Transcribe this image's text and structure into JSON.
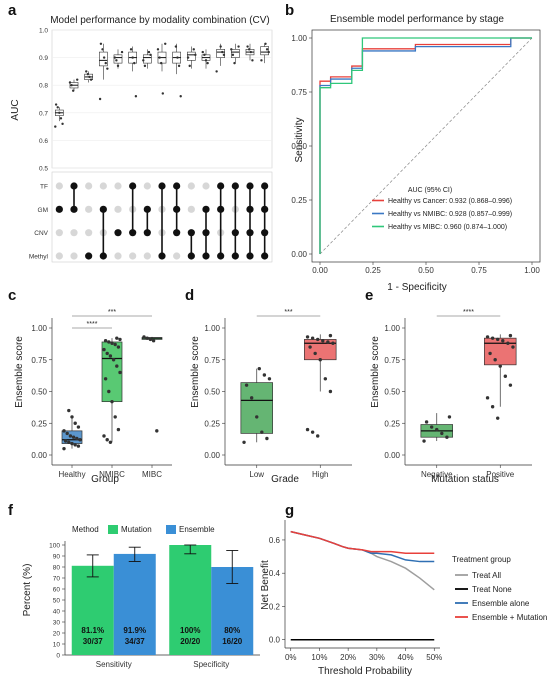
{
  "chart_data": [
    {
      "panel": "a",
      "type": "box",
      "title": "Model performance by modality combination (CV)",
      "ylabel": "AUC",
      "yticks": [
        "0.5",
        "0.6",
        "0.7",
        "0.8",
        "0.9",
        "1.0"
      ],
      "ylim": [
        0.5,
        1.0
      ],
      "boxes": [
        {
          "q1": 0.69,
          "med": 0.7,
          "q3": 0.71,
          "lo": 0.67,
          "hi": 0.72,
          "pts": [
            0.65,
            0.66,
            0.68,
            0.7,
            0.72,
            0.73
          ]
        },
        {
          "q1": 0.79,
          "med": 0.8,
          "q3": 0.81,
          "lo": 0.78,
          "hi": 0.82,
          "pts": [
            0.78,
            0.8,
            0.81,
            0.82
          ]
        },
        {
          "q1": 0.82,
          "med": 0.83,
          "q3": 0.84,
          "lo": 0.81,
          "hi": 0.85,
          "pts": [
            0.82,
            0.83,
            0.84,
            0.85
          ]
        },
        {
          "q1": 0.87,
          "med": 0.89,
          "q3": 0.92,
          "lo": 0.82,
          "hi": 0.95,
          "pts": [
            0.75,
            0.86,
            0.88,
            0.9,
            0.93,
            0.95
          ]
        },
        {
          "q1": 0.88,
          "med": 0.9,
          "q3": 0.91,
          "lo": 0.86,
          "hi": 0.93,
          "pts": [
            0.87,
            0.89,
            0.9,
            0.92
          ]
        },
        {
          "q1": 0.88,
          "med": 0.9,
          "q3": 0.92,
          "lo": 0.85,
          "hi": 0.94,
          "pts": [
            0.76,
            0.88,
            0.9,
            0.93
          ]
        },
        {
          "q1": 0.88,
          "med": 0.9,
          "q3": 0.91,
          "lo": 0.86,
          "hi": 0.93,
          "pts": [
            0.87,
            0.89,
            0.91,
            0.92
          ]
        },
        {
          "q1": 0.88,
          "med": 0.9,
          "q3": 0.92,
          "lo": 0.85,
          "hi": 0.95,
          "pts": [
            0.77,
            0.88,
            0.9,
            0.93,
            0.95
          ]
        },
        {
          "q1": 0.88,
          "med": 0.9,
          "q3": 0.92,
          "lo": 0.84,
          "hi": 0.95,
          "pts": [
            0.76,
            0.87,
            0.9,
            0.94
          ]
        },
        {
          "q1": 0.89,
          "med": 0.91,
          "q3": 0.92,
          "lo": 0.86,
          "hi": 0.94,
          "pts": [
            0.87,
            0.9,
            0.91,
            0.93
          ]
        },
        {
          "q1": 0.89,
          "med": 0.9,
          "q3": 0.91,
          "lo": 0.86,
          "hi": 0.93,
          "pts": [
            0.88,
            0.89,
            0.91,
            0.92
          ]
        },
        {
          "q1": 0.9,
          "med": 0.92,
          "q3": 0.93,
          "lo": 0.87,
          "hi": 0.95,
          "pts": [
            0.85,
            0.91,
            0.92,
            0.94
          ]
        },
        {
          "q1": 0.9,
          "med": 0.92,
          "q3": 0.93,
          "lo": 0.88,
          "hi": 0.95,
          "pts": [
            0.88,
            0.91,
            0.93,
            0.94
          ]
        },
        {
          "q1": 0.91,
          "med": 0.92,
          "q3": 0.93,
          "lo": 0.89,
          "hi": 0.95,
          "pts": [
            0.89,
            0.92,
            0.93,
            0.94
          ]
        },
        {
          "q1": 0.91,
          "med": 0.92,
          "q3": 0.94,
          "lo": 0.88,
          "hi": 0.95,
          "pts": [
            0.89,
            0.92,
            0.93,
            0.95
          ]
        }
      ],
      "upset_rows": [
        "TF",
        "GM",
        "CNV",
        "Methyl"
      ],
      "upset_sets": [
        [
          1
        ],
        [
          0,
          1
        ],
        [
          3
        ],
        [
          1,
          3
        ],
        [
          2
        ],
        [
          0,
          2
        ],
        [
          1,
          2
        ],
        [
          0,
          3
        ],
        [
          0,
          1,
          2
        ],
        [
          2,
          3
        ],
        [
          1,
          2,
          3
        ],
        [
          0,
          1,
          3
        ],
        [
          0,
          2,
          3
        ],
        [
          0,
          1,
          2,
          3
        ],
        [
          0,
          1,
          2,
          3
        ]
      ]
    },
    {
      "panel": "b",
      "type": "line",
      "title": "Ensemble model performance by stage",
      "xlabel": "1 - Specificity",
      "ylabel": "Sensitivity",
      "ticks": [
        "0.00",
        "0.25",
        "0.50",
        "0.75",
        "1.00"
      ],
      "legend_title": "AUC (95% CI)",
      "series": [
        {
          "name": "Healthy vs Cancer: 0.932 (0.868–0.996)",
          "color": "#e8403b",
          "x": [
            0,
            0,
            0.05,
            0.05,
            0.15,
            0.15,
            0.2,
            0.2,
            0.45,
            0.45,
            0.9,
            0.9,
            1
          ],
          "y": [
            0,
            0.8,
            0.8,
            0.82,
            0.82,
            0.87,
            0.87,
            0.95,
            0.95,
            0.97,
            0.97,
            1,
            1
          ]
        },
        {
          "name": "Healthy vs NMIBC: 0.928 (0.857–0.999)",
          "color": "#3a78c4",
          "x": [
            0,
            0,
            0.05,
            0.05,
            0.15,
            0.15,
            0.2,
            0.2,
            0.45,
            0.45,
            0.9,
            0.9,
            1
          ],
          "y": [
            0,
            0.78,
            0.78,
            0.81,
            0.81,
            0.86,
            0.86,
            0.94,
            0.94,
            0.96,
            0.96,
            1,
            1
          ]
        },
        {
          "name": "Healthy vs MIBC: 0.960 (0.874–1.000)",
          "color": "#2fc77a",
          "x": [
            0,
            0,
            0.05,
            0.05,
            0.15,
            0.15,
            0.2,
            0.2,
            1
          ],
          "y": [
            0,
            0.77,
            0.77,
            0.79,
            0.79,
            0.85,
            0.85,
            1,
            1
          ]
        }
      ]
    },
    {
      "panel": "c",
      "type": "box",
      "xlabel": "Group",
      "ylabel": "Ensemble score",
      "categories": [
        "Healthy",
        "NMIBC",
        "MIBC"
      ],
      "colors": [
        "#3f85c4",
        "#3cbf5a",
        "#3cbf5a"
      ],
      "boxes": [
        {
          "q1": 0.09,
          "med": 0.12,
          "q3": 0.19,
          "lo": 0.05,
          "hi": 0.3,
          "pts": [
            0.05,
            0.07,
            0.08,
            0.09,
            0.1,
            0.11,
            0.12,
            0.13,
            0.14,
            0.15,
            0.17,
            0.19,
            0.22,
            0.25,
            0.3,
            0.35
          ]
        },
        {
          "q1": 0.42,
          "med": 0.76,
          "q3": 0.89,
          "lo": 0.1,
          "hi": 0.92,
          "pts": [
            0.1,
            0.12,
            0.15,
            0.2,
            0.3,
            0.42,
            0.5,
            0.6,
            0.65,
            0.7,
            0.75,
            0.78,
            0.8,
            0.83,
            0.85,
            0.87,
            0.88,
            0.89,
            0.9,
            0.91,
            0.92
          ]
        },
        {
          "q1": 0.91,
          "med": 0.92,
          "q3": 0.925,
          "lo": 0.9,
          "hi": 0.93,
          "pts": [
            0.19,
            0.9,
            0.91,
            0.92,
            0.93
          ]
        }
      ],
      "yticks": [
        "0.00",
        "0.25",
        "0.50",
        "0.75",
        "1.00"
      ],
      "signif": [
        {
          "a": 0,
          "b": 1,
          "label": "****"
        },
        {
          "a": 0,
          "b": 2,
          "label": "***"
        }
      ]
    },
    {
      "panel": "d",
      "type": "box",
      "xlabel": "Grade",
      "ylabel": "Ensemble score",
      "categories": [
        "Low",
        "High"
      ],
      "colors": [
        "#4aa85a",
        "#e85a5a"
      ],
      "boxes": [
        {
          "q1": 0.17,
          "med": 0.43,
          "q3": 0.57,
          "lo": 0.1,
          "hi": 0.68,
          "pts": [
            0.1,
            0.13,
            0.18,
            0.3,
            0.45,
            0.55,
            0.6,
            0.63,
            0.68
          ]
        },
        {
          "q1": 0.75,
          "med": 0.88,
          "q3": 0.91,
          "lo": 0.5,
          "hi": 0.95,
          "pts": [
            0.15,
            0.18,
            0.2,
            0.5,
            0.6,
            0.75,
            0.8,
            0.85,
            0.88,
            0.89,
            0.9,
            0.91,
            0.92,
            0.93,
            0.94
          ]
        }
      ],
      "yticks": [
        "0.00",
        "0.25",
        "0.50",
        "0.75",
        "1.00"
      ],
      "signif": [
        {
          "a": 0,
          "b": 1,
          "label": "***"
        }
      ]
    },
    {
      "panel": "e",
      "type": "box",
      "xlabel": "Mutation status",
      "ylabel": "Ensemble score",
      "categories": [
        "Negative",
        "Positive"
      ],
      "colors": [
        "#4aa85a",
        "#e85a5a"
      ],
      "boxes": [
        {
          "q1": 0.14,
          "med": 0.19,
          "q3": 0.24,
          "lo": 0.11,
          "hi": 0.33,
          "pts": [
            0.11,
            0.14,
            0.17,
            0.2,
            0.22,
            0.26,
            0.3
          ]
        },
        {
          "q1": 0.71,
          "med": 0.88,
          "q3": 0.92,
          "lo": 0.38,
          "hi": 0.95,
          "pts": [
            0.29,
            0.38,
            0.45,
            0.55,
            0.62,
            0.7,
            0.75,
            0.8,
            0.85,
            0.88,
            0.9,
            0.91,
            0.92,
            0.93,
            0.94
          ]
        }
      ],
      "yticks": [
        "0.00",
        "0.25",
        "0.50",
        "0.75",
        "1.00"
      ],
      "signif": [
        {
          "a": 0,
          "b": 1,
          "label": "****"
        }
      ]
    },
    {
      "panel": "f",
      "type": "bar",
      "ylabel": "Percent (%)",
      "legend_title": "Method",
      "categories": [
        "Sensitivity",
        "Specificity"
      ],
      "yticks": [
        "0",
        "10",
        "20",
        "30",
        "40",
        "50",
        "60",
        "70",
        "80",
        "90",
        "100"
      ],
      "series": [
        {
          "name": "Mutation",
          "color": "#2ecc71",
          "values": [
            81.1,
            100
          ],
          "err": [
            [
              71,
              91
            ],
            [
              92,
              100
            ]
          ],
          "labels": [
            [
              "81.1%",
              "30/37"
            ],
            [
              "100%",
              "20/20"
            ]
          ]
        },
        {
          "name": "Ensemble",
          "color": "#3a8fd6",
          "values": [
            91.9,
            80
          ],
          "err": [
            [
              85,
              98
            ],
            [
              65,
              95
            ]
          ],
          "labels": [
            [
              "91.9%",
              "34/37"
            ],
            [
              "80%",
              "16/20"
            ]
          ]
        }
      ]
    },
    {
      "panel": "g",
      "type": "line",
      "xlabel": "Threshold Probability",
      "ylabel": "Net Benefit",
      "xticks": [
        "0%",
        "10%",
        "20%",
        "30%",
        "40%",
        "50%"
      ],
      "yticks": [
        "0.0",
        "0.2",
        "0.4",
        "0.6"
      ],
      "legend_title": "Treatment group",
      "series": [
        {
          "name": "Treat All",
          "color": "#9e9e9e",
          "x": [
            0,
            0.05,
            0.1,
            0.15,
            0.18,
            0.2,
            0.25,
            0.28,
            0.3,
            0.35,
            0.4,
            0.45,
            0.5
          ],
          "y": [
            0.65,
            0.63,
            0.61,
            0.58,
            0.56,
            0.55,
            0.54,
            0.52,
            0.5,
            0.47,
            0.43,
            0.37,
            0.3
          ]
        },
        {
          "name": "Treat None",
          "color": "#000000",
          "x": [
            0,
            0.5
          ],
          "y": [
            0,
            0
          ]
        },
        {
          "name": "Ensemble alone",
          "color": "#2f6fb3",
          "x": [
            0,
            0.05,
            0.1,
            0.15,
            0.18,
            0.2,
            0.25,
            0.28,
            0.3,
            0.35,
            0.4,
            0.45,
            0.5
          ],
          "y": [
            0.65,
            0.63,
            0.61,
            0.58,
            0.56,
            0.55,
            0.54,
            0.52,
            0.52,
            0.51,
            0.48,
            0.47,
            0.47
          ]
        },
        {
          "name": "Ensemble + Mutation",
          "color": "#e8403b",
          "x": [
            0,
            0.05,
            0.1,
            0.15,
            0.18,
            0.2,
            0.25,
            0.28,
            0.3,
            0.35,
            0.4,
            0.45,
            0.5
          ],
          "y": [
            0.65,
            0.63,
            0.61,
            0.58,
            0.56,
            0.55,
            0.54,
            0.53,
            0.53,
            0.53,
            0.52,
            0.52,
            0.52
          ]
        }
      ]
    }
  ],
  "panel_labels": [
    "a",
    "b",
    "c",
    "d",
    "e",
    "f",
    "g"
  ]
}
